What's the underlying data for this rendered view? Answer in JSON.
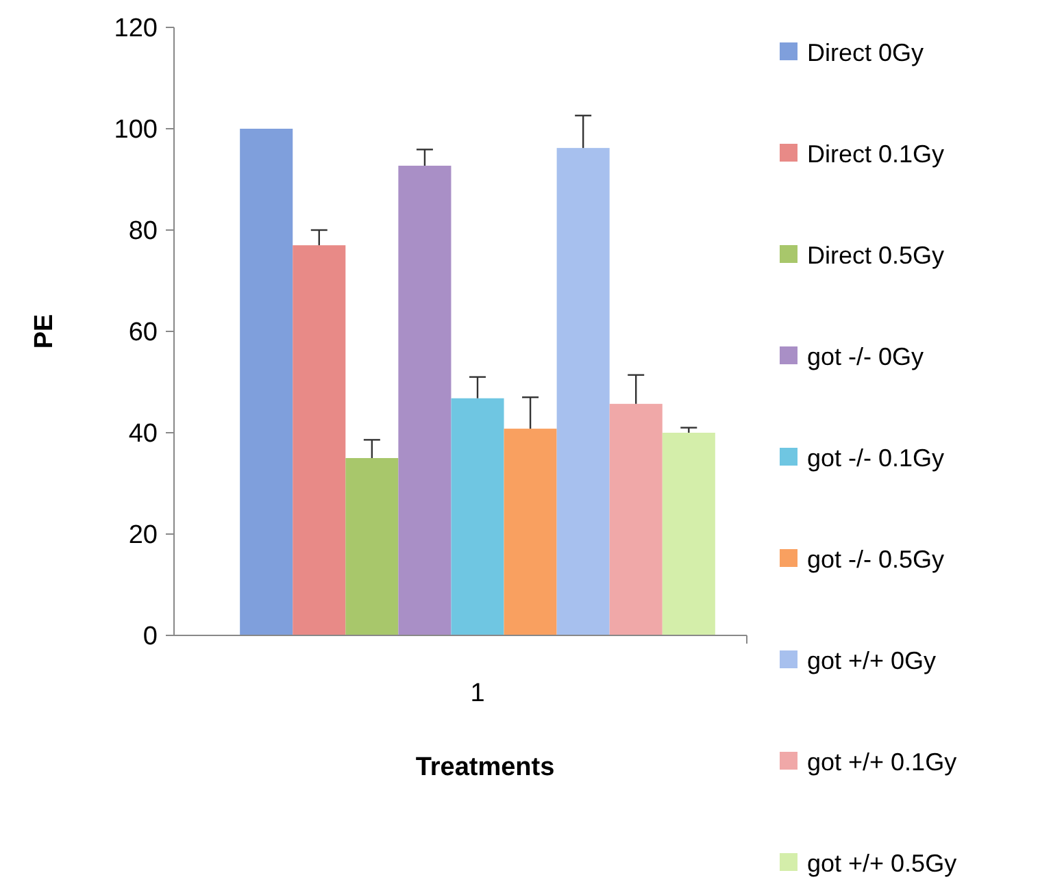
{
  "chart_data": {
    "type": "bar",
    "xlabel": "Treatments",
    "ylabel": "PE",
    "categories": [
      "1"
    ],
    "ylim": [
      0,
      120
    ],
    "yticks": [
      0,
      20,
      40,
      60,
      80,
      100,
      120
    ],
    "grid": false,
    "legend": "right",
    "series": [
      {
        "name": "Direct 0Gy",
        "color": "#7f9fdc",
        "values": [
          100
        ]
      },
      {
        "name": "Direct 0.1Gy",
        "color": "#e88a87",
        "values": [
          77
        ],
        "errors": [
          3
        ]
      },
      {
        "name": "Direct 0.5Gy",
        "color": "#a8c76b",
        "values": [
          35
        ],
        "errors": [
          3.6
        ]
      },
      {
        "name": "got -/- 0Gy",
        "color": "#a98fc6",
        "values": [
          92.7
        ],
        "errors": [
          3.2
        ]
      },
      {
        "name": "got -/- 0.1Gy",
        "color": "#6fc6e2",
        "values": [
          46.8
        ],
        "errors": [
          4.2
        ]
      },
      {
        "name": "got -/- 0.5Gy",
        "color": "#f9a060",
        "values": [
          40.8
        ],
        "errors": [
          6.2
        ]
      },
      {
        "name": "got +/+ 0Gy",
        "color": "#a7c0ee",
        "values": [
          96.2
        ],
        "errors": [
          6.4
        ]
      },
      {
        "name": "got +/+ 0.1Gy",
        "color": "#f0a8a8",
        "values": [
          45.7
        ],
        "errors": [
          5.7
        ]
      },
      {
        "name": "got +/+ 0.5Gy",
        "color": "#d4eeaa",
        "values": [
          40
        ],
        "errors": [
          1
        ]
      }
    ]
  }
}
